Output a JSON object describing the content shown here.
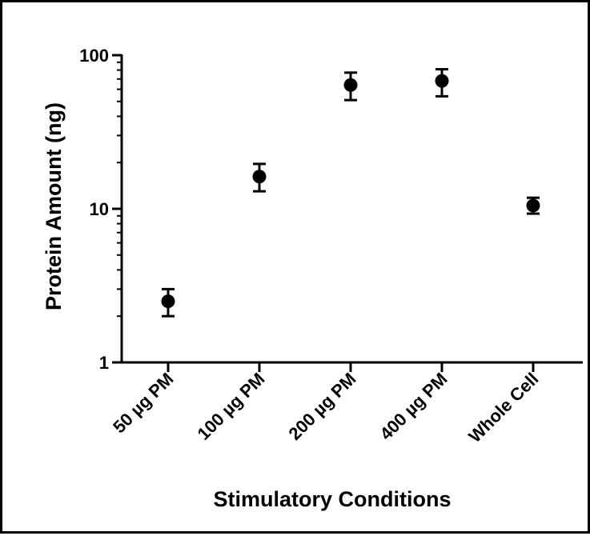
{
  "chart_data": {
    "type": "scatter",
    "categories": [
      "50 µg PM",
      "100 µg PM",
      "200 µg PM",
      "400 µg PM",
      "Whole Cell"
    ],
    "values": [
      2.5,
      16.2,
      64,
      68,
      10.5
    ],
    "error_low": [
      2.0,
      13.0,
      51,
      54,
      9.3
    ],
    "error_high": [
      3.0,
      19.6,
      77,
      81,
      11.8
    ],
    "xlabel": "Stimulatory Conditions",
    "ylabel": "Protein  Amount (ng)",
    "y_scale": "log",
    "ylim": [
      1,
      100
    ],
    "y_ticks": [
      1,
      10,
      100
    ],
    "y_tick_labels": [
      "1",
      "10",
      "100"
    ],
    "grid": false,
    "marker_color": "#000000"
  }
}
